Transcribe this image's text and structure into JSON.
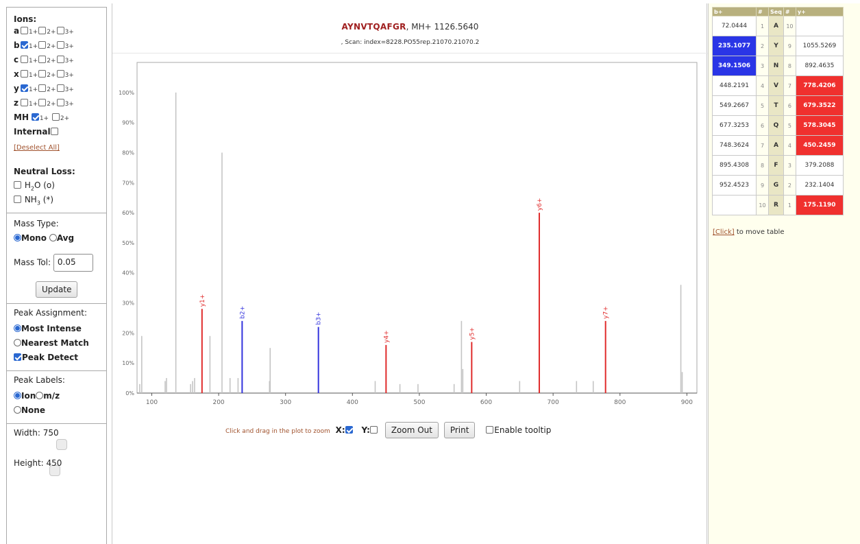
{
  "ions": {
    "label": "Ions:",
    "rows": [
      {
        "letter": "a",
        "charges": [
          "1+",
          "2+",
          "3+"
        ],
        "checked": [
          false,
          false,
          false
        ]
      },
      {
        "letter": "b",
        "charges": [
          "1+",
          "2+",
          "3+"
        ],
        "checked": [
          true,
          false,
          false
        ]
      },
      {
        "letter": "c",
        "charges": [
          "1+",
          "2+",
          "3+"
        ],
        "checked": [
          false,
          false,
          false
        ]
      },
      {
        "letter": "x",
        "charges": [
          "1+",
          "2+",
          "3+"
        ],
        "checked": [
          false,
          false,
          false
        ]
      },
      {
        "letter": "y",
        "charges": [
          "1+",
          "2+",
          "3+"
        ],
        "checked": [
          true,
          false,
          false
        ]
      },
      {
        "letter": "z",
        "charges": [
          "1+",
          "2+",
          "3+"
        ],
        "checked": [
          false,
          false,
          false
        ]
      }
    ],
    "mh": {
      "label": "MH",
      "charges": [
        "1+",
        "2+"
      ],
      "checked": [
        true,
        false
      ]
    },
    "internal_label": "Internal",
    "deselect_all": "[Deselect All]"
  },
  "neutral_loss": {
    "label": "Neutral Loss:",
    "h2o_main": "H",
    "h2o_sub": "2",
    "h2o_rest": "O (o)",
    "nh3_main": "NH",
    "nh3_sub": "3",
    "nh3_rest": " (*)"
  },
  "mass": {
    "type_label": "Mass Type:",
    "mono": "Mono",
    "avg": "Avg",
    "tol_label": "Mass Tol:",
    "tol_value": "0.05",
    "update": "Update"
  },
  "peak_assignment": {
    "label": "Peak Assignment:",
    "most_intense": "Most Intense",
    "nearest_match": "Nearest Match",
    "peak_detect": "Peak Detect"
  },
  "peak_labels": {
    "label": "Peak Labels:",
    "ion": "Ion",
    "mz": "m/z",
    "none": "None"
  },
  "size": {
    "width": "Width: 750",
    "height": "Height: 450"
  },
  "header": {
    "sequence": "AYNVTQAFGR",
    "mh": ", MH+ 1126.5640",
    "scan": ", Scan: index=8228.PO55rep.21070.21070.2"
  },
  "plot_controls": {
    "hint": "Click and drag in the plot to zoom",
    "x_label": "X:",
    "y_label": "Y:",
    "zoom_out": "Zoom Out",
    "print": "Print",
    "tooltip": "Enable tooltip"
  },
  "chart_data": {
    "type": "bar",
    "xlim": [
      78,
      915
    ],
    "ylim": [
      0,
      110
    ],
    "x_ticks": [
      100,
      200,
      300,
      400,
      500,
      600,
      700,
      800,
      900
    ],
    "y_ticks": [
      0,
      10,
      20,
      30,
      40,
      50,
      60,
      70,
      80,
      90,
      100
    ],
    "y_tick_labels": [
      "0%",
      "10%",
      "20%",
      "30%",
      "40%",
      "50%",
      "60%",
      "70%",
      "80%",
      "90%",
      "100%"
    ],
    "unassigned_color": "#c4c4c4",
    "b_color": "#3333dd",
    "y_color": "#e02b2b",
    "unassigned_peaks": [
      [
        82,
        3
      ],
      [
        85,
        19
      ],
      [
        120,
        4
      ],
      [
        122,
        5
      ],
      [
        136,
        100
      ],
      [
        158,
        3
      ],
      [
        161,
        4
      ],
      [
        164,
        5
      ],
      [
        187,
        19
      ],
      [
        205,
        80
      ],
      [
        217,
        5
      ],
      [
        229,
        5
      ],
      [
        277,
        15
      ],
      [
        276,
        4
      ],
      [
        434,
        4
      ],
      [
        471,
        3
      ],
      [
        498,
        3
      ],
      [
        552,
        3
      ],
      [
        563,
        24
      ],
      [
        565,
        8
      ],
      [
        650,
        4
      ],
      [
        735,
        4
      ],
      [
        760,
        4
      ],
      [
        891,
        36
      ],
      [
        893,
        7
      ]
    ],
    "assigned_peaks": [
      {
        "x": 175.12,
        "y": 28,
        "label": "y1+",
        "series": "y"
      },
      {
        "x": 235.11,
        "y": 24,
        "label": "b2+",
        "series": "b"
      },
      {
        "x": 349.15,
        "y": 22,
        "label": "b3+",
        "series": "b"
      },
      {
        "x": 450.25,
        "y": 16,
        "label": "y4+",
        "series": "y"
      },
      {
        "x": 578.3,
        "y": 17,
        "label": "y5+",
        "series": "y"
      },
      {
        "x": 679.35,
        "y": 60,
        "label": "y6+",
        "series": "y"
      },
      {
        "x": 778.42,
        "y": 24,
        "label": "y7+",
        "series": "y"
      }
    ]
  },
  "fragment_table": {
    "headers": [
      "b+",
      "#",
      "Seq",
      "#",
      "y+"
    ],
    "rows": [
      {
        "b": "72.0444",
        "n": "1",
        "aa": "A",
        "m": "10",
        "y": "",
        "bhit": false,
        "yhit": false
      },
      {
        "b": "235.1077",
        "n": "2",
        "aa": "Y",
        "m": "9",
        "y": "1055.5269",
        "bhit": true,
        "yhit": false
      },
      {
        "b": "349.1506",
        "n": "3",
        "aa": "N",
        "m": "8",
        "y": "892.4635",
        "bhit": true,
        "yhit": false
      },
      {
        "b": "448.2191",
        "n": "4",
        "aa": "V",
        "m": "7",
        "y": "778.4206",
        "bhit": false,
        "yhit": true
      },
      {
        "b": "549.2667",
        "n": "5",
        "aa": "T",
        "m": "6",
        "y": "679.3522",
        "bhit": false,
        "yhit": true
      },
      {
        "b": "677.3253",
        "n": "6",
        "aa": "Q",
        "m": "5",
        "y": "578.3045",
        "bhit": false,
        "yhit": true
      },
      {
        "b": "748.3624",
        "n": "7",
        "aa": "A",
        "m": "4",
        "y": "450.2459",
        "bhit": false,
        "yhit": true
      },
      {
        "b": "895.4308",
        "n": "8",
        "aa": "F",
        "m": "3",
        "y": "379.2088",
        "bhit": false,
        "yhit": false
      },
      {
        "b": "952.4523",
        "n": "9",
        "aa": "G",
        "m": "2",
        "y": "232.1404",
        "bhit": false,
        "yhit": false
      },
      {
        "b": "",
        "n": "10",
        "aa": "R",
        "m": "1",
        "y": "175.1190",
        "bhit": false,
        "yhit": true
      }
    ],
    "move_link": "[Click]",
    "move_text": " to move table"
  }
}
